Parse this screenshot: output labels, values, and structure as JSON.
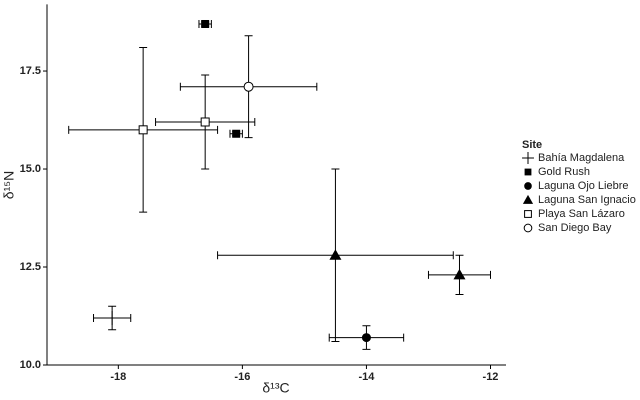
{
  "chart_data": {
    "type": "scatter",
    "x_label": "δ¹³C",
    "y_label": "δ¹⁵N",
    "xlim": [
      -19.15,
      -11.75
    ],
    "ylim": [
      10,
      19.2
    ],
    "xticks": [
      -18,
      -16,
      -14,
      -12
    ],
    "yticks": [
      {
        "value": 10,
        "label": "10.0"
      },
      12.5,
      {
        "value": 15,
        "label": "15.0"
      },
      17.5
    ],
    "grid": false,
    "legend_title": "Site",
    "series": [
      {
        "name": "Bahía Magdalena",
        "marker": "plus",
        "color": "#000000",
        "x": [
          -18.1
        ],
        "y": [
          11.2
        ],
        "xerr": [
          0.3
        ],
        "yerr": [
          0.3
        ]
      },
      {
        "name": "Gold Rush",
        "marker": "filled-square",
        "color": "#000000",
        "x": [
          -16.6,
          -16.1
        ],
        "y": [
          18.7,
          15.9
        ],
        "xerr": [
          0.1,
          0.1
        ],
        "yerr": [
          0.05,
          0.05
        ]
      },
      {
        "name": "Laguna Ojo Liebre",
        "marker": "filled-circle",
        "color": "#000000",
        "x": [
          -14.0
        ],
        "y": [
          10.7
        ],
        "xerr": [
          0.6
        ],
        "yerr": [
          0.3
        ]
      },
      {
        "name": "Laguna San Ignacio",
        "marker": "filled-triangle",
        "color": "#000000",
        "x": [
          -14.5,
          -12.5
        ],
        "y": [
          12.8,
          12.3
        ],
        "xerr": [
          1.9,
          0.5
        ],
        "yerr": [
          2.2,
          0.5
        ]
      },
      {
        "name": "Playa San Lázaro",
        "marker": "open-square",
        "color": "#000000",
        "x": [
          -17.6,
          -16.6
        ],
        "y": [
          16.0,
          16.2
        ],
        "xerr": [
          1.2,
          0.8
        ],
        "yerr": [
          2.1,
          1.2
        ]
      },
      {
        "name": "San Diego Bay",
        "marker": "open-circle",
        "color": "#000000",
        "x": [
          -15.9
        ],
        "y": [
          17.1
        ],
        "xerr": [
          1.1
        ],
        "yerr": [
          1.3
        ]
      }
    ]
  }
}
